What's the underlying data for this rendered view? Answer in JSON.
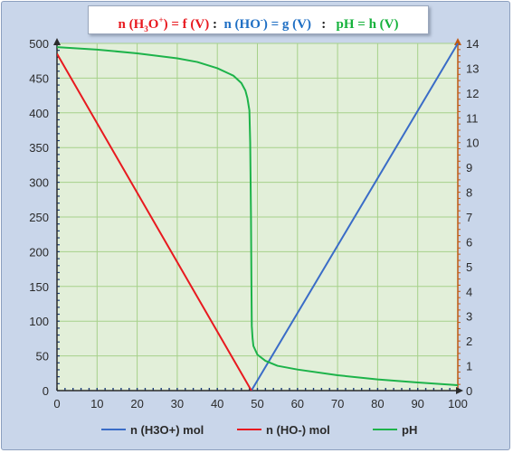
{
  "title": {
    "part1": {
      "pre": "n (H",
      "sub": "3",
      "mid": "O",
      "sup": "+",
      "post": ") = f (V)"
    },
    "sep1": " :  ",
    "part2": {
      "pre": "n (HO",
      "sup": "-",
      "post": ") = g (V)"
    },
    "sep2": "   :   ",
    "part3": "pH = h (V)"
  },
  "chart_data": {
    "type": "line",
    "x_range": [
      0,
      100
    ],
    "y_left_range": [
      0,
      500
    ],
    "y_right_range": [
      0,
      14
    ],
    "x_ticks": [
      0,
      10,
      20,
      30,
      40,
      50,
      60,
      70,
      80,
      90,
      100
    ],
    "y_left_ticks": [
      0,
      50,
      100,
      150,
      200,
      250,
      300,
      350,
      400,
      450,
      500
    ],
    "y_right_ticks": [
      0,
      1,
      2,
      3,
      4,
      5,
      6,
      7,
      8,
      9,
      10,
      11,
      12,
      13,
      14
    ],
    "grid": true,
    "legend_position": "bottom",
    "colors": {
      "plot_bg": "#e2efd9",
      "grid": "#a6d18a",
      "left_axis": "#2b2b2b",
      "right_axis": "#c05a12"
    },
    "series": [
      {
        "name": "n (H3O+) mol",
        "axis": "left",
        "color": "#3a6cc7",
        "x": [
          48.5,
          100
        ],
        "y": [
          0,
          500
        ]
      },
      {
        "name": "n (HO-) mol",
        "axis": "left",
        "color": "#e8191f",
        "x": [
          0,
          48.5
        ],
        "y": [
          485,
          0
        ]
      },
      {
        "name": "pH",
        "axis": "right",
        "color": "#1db34a",
        "x": [
          0,
          10,
          20,
          30,
          35,
          40,
          44,
          46,
          47,
          47.5,
          48,
          48.2,
          48.4,
          48.5,
          48.6,
          48.8,
          49,
          50,
          52,
          55,
          60,
          70,
          80,
          90,
          100
        ],
        "y": [
          13.85,
          13.75,
          13.6,
          13.4,
          13.25,
          13.0,
          12.7,
          12.4,
          12.1,
          11.8,
          11.3,
          10.0,
          7.0,
          4.5,
          2.6,
          2.1,
          1.8,
          1.45,
          1.2,
          1.0,
          0.85,
          0.62,
          0.45,
          0.33,
          0.22
        ]
      }
    ]
  }
}
